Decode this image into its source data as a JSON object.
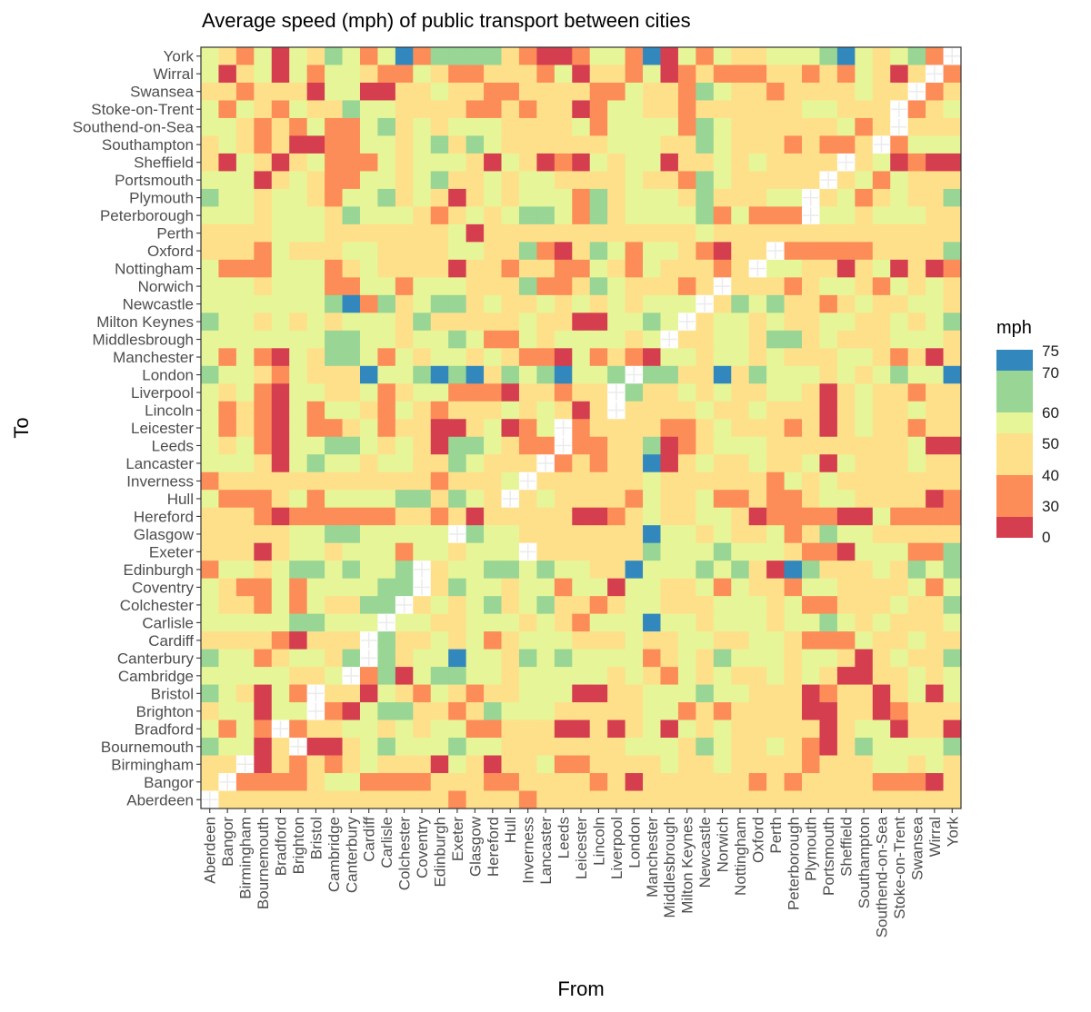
{
  "chart_data": {
    "type": "heatmap",
    "title": "Average speed (mph) of public transport between cities",
    "xlabel": "From",
    "ylabel": "To",
    "cities": [
      "Aberdeen",
      "Bangor",
      "Birmingham",
      "Bournemouth",
      "Bradford",
      "Brighton",
      "Bristol",
      "Cambridge",
      "Canterbury",
      "Cardiff",
      "Carlisle",
      "Colchester",
      "Coventry",
      "Edinburgh",
      "Exeter",
      "Glasgow",
      "Hereford",
      "Hull",
      "Inverness",
      "Lancaster",
      "Leeds",
      "Leicester",
      "Lincoln",
      "Liverpool",
      "London",
      "Manchester",
      "Middlesbrough",
      "Milton Keynes",
      "Newcastle",
      "Norwich",
      "Nottingham",
      "Oxford",
      "Perth",
      "Peterborough",
      "Plymouth",
      "Portsmouth",
      "Sheffield",
      "Southampton",
      "Southend-on-Sea",
      "Stoke-on-Trent",
      "Swansea",
      "Wirral",
      "York"
    ],
    "legend": {
      "title": "mph",
      "position": "right",
      "breaks": [
        "75",
        "70",
        "60",
        "50",
        "40",
        "30",
        "0"
      ],
      "bins": [
        {
          "range": "0-30",
          "color": "#d53e4f"
        },
        {
          "range": "30-40",
          "color": "#fc8d59"
        },
        {
          "range": "40-50",
          "color": "#fee08b"
        },
        {
          "range": "50-60",
          "color": "#e6f598"
        },
        {
          "range": "60-70",
          "color": "#99d594"
        },
        {
          "range": "70-75",
          "color": "#3288bd"
        }
      ]
    },
    "diagonal": "empty",
    "encoding": "each row string lists the speed bin per From city (columns Aberdeen..York): 1=0-30, 2=30-40, 3=40-50, 4=50-60, 5=60-70, 6=70-75, 0=no value",
    "rows": [
      {
        "to": "York",
        "bins": "4324143542462555532112442614243344456434520"
      },
      {
        "to": "Wirral",
        "bins": "4134142443224322333241332412322233232431302"
      },
      {
        "to": "Swansea",
        "bins": "3323331441133433223333224332543323333433023"
      },
      {
        "to": "Stoke-on-Trent",
        "bins": "4243243354433332232331244332333333443330234"
      },
      {
        "to": "Southend-on-Sea",
        "bins": "4432324224534344433334244442543333334230333"
      },
      {
        "to": "Southampton",
        "bins": "3432311224434535433333344433543332322302444"
      },
      {
        "to": "Sheffield",
        "bins": "3143134222434443143121434413343433330341211"
      },
      {
        "to": "Portsmouth",
        "bins": "4441343224434533434433334332543333303424333"
      },
      {
        "to": "Plymouth",
        "bins": "5443443244534313434442534443533344034234335"
      },
      {
        "to": "Peterborough",
        "bins": "4443444354443234345542534444524222044344433"
      },
      {
        "to": "Perth",
        "bins": "3333444333333341333333333333433333333333333"
      },
      {
        "to": "Oxford",
        "bins": "3332433344333344335213542443213302222233335"
      },
      {
        "to": "Nottingham",
        "bins": "4222444234333313323322432433323044331341312"
      },
      {
        "to": "Norwich",
        "bins": "4443444224424443335223543332303332344324343"
      },
      {
        "to": "Newcastle",
        "bins": "4444444562534553433434343444035453323433443"
      },
      {
        "to": "Milton Keynes",
        "bins": "5443434344435333334331144540344343344334345"
      },
      {
        "to": "Middlesbrough",
        "bins": "4444444554434454224344443403344355343334443"
      },
      {
        "to": "Manchester",
        "bins": "4242143554243443432214232144344343334432313"
      },
      {
        "to": "London",
        "bins": "5443243336445656354564450553363544434345446"
      },
      {
        "to": "Liverpool",
        "bins": "4342144334234422213323305334343344313433233"
      },
      {
        "to": "Lincoln",
        "bins": "4232142443243233343431303333433433313433433"
      },
      {
        "to": "Leicester",
        "bins": "4232142234233113412402333322343332313433233"
      },
      {
        "to": "Leeds",
        "bins": "4342144554343155432202233512344433333333411"
      },
      {
        "to": "Lancaster",
        "bins": "4443145443443354333023233613433433414333433"
      },
      {
        "to": "Inverness",
        "bins": "2333333333333233340333333433333324343333333"
      },
      {
        "to": "Hull",
        "bins": "4222342444455354303433332433422322344333312"
      },
      {
        "to": "Hereford",
        "bins": "3332122222233231333331123433443122221142222"
      },
      {
        "to": "Glasgow",
        "bins": "3333344554444405443333333644343342354433333"
      },
      {
        "to": "Exeter",
        "bins": "3331344344424434440333333544454443221444225"
      },
      {
        "to": "Edinburgh",
        "bins": "2443455454450344554544336444545316533343545"
      },
      {
        "to": "Coventry",
        "bins": "4322424444550354434424414433424332443333424"
      },
      {
        "to": "Colchester",
        "bins": "4332424335503434534533234433344434223334335"
      },
      {
        "to": "Carlisle",
        "bins": "4444455444044334443432444644344434454343334"
      },
      {
        "to": "Cardiff",
        "bins": "3333213330533434234443334334433443222433433"
      },
      {
        "to": "Canterbury",
        "bins": "5442344350534464435454444234354443443134335"
      },
      {
        "to": "Cambridge",
        "bins": "4444433402514554434444434324343343431133434"
      },
      {
        "to": "Bristol",
        "bins": "5431420331432432334441133444544333123313414"
      },
      {
        "to": "Brighton",
        "bins": "3441440214553323544433333442323333113312333"
      },
      {
        "to": "Bradford",
        "bins": "4242023344343442233311313414343333313441331"
      },
      {
        "to": "Bournemouth",
        "bins": "5441301134544454433333334443543343213544445"
      },
      {
        "to": "Birmingham",
        "bins": "3301323234333143133422333343343333233344343"
      },
      {
        "to": "Bangor",
        "bins": "3022223442222333223333231333333232333322213"
      },
      {
        "to": "Aberdeen",
        "bins": "0333333333333323332333333333333333333333333"
      }
    ]
  }
}
